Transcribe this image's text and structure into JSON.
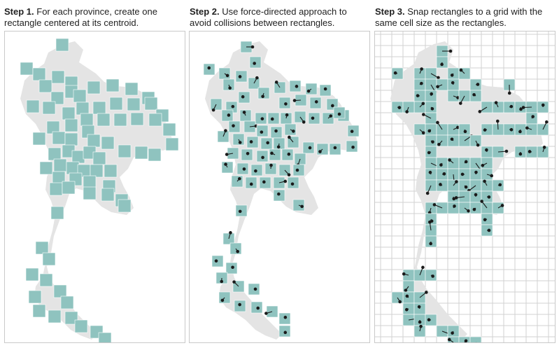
{
  "steps": [
    {
      "label": "Step 1.",
      "text": "For each province, create one rectangle centered at its centroid."
    },
    {
      "label": "Step 2.",
      "text": "Use force-directed approach to avoid collisions between rectangles."
    },
    {
      "label": "Step 3.",
      "text": "Snap rectangles to a grid with the same cell size as the rectangles."
    }
  ],
  "colors": {
    "map_fill": "#e4e4e4",
    "rect_fill": "#8fc3bf",
    "rect_stroke": "#ffffff",
    "dot": "#1a1a1a",
    "grid": "#d2d2d2",
    "panel_border": "#c9c9c9"
  }
}
